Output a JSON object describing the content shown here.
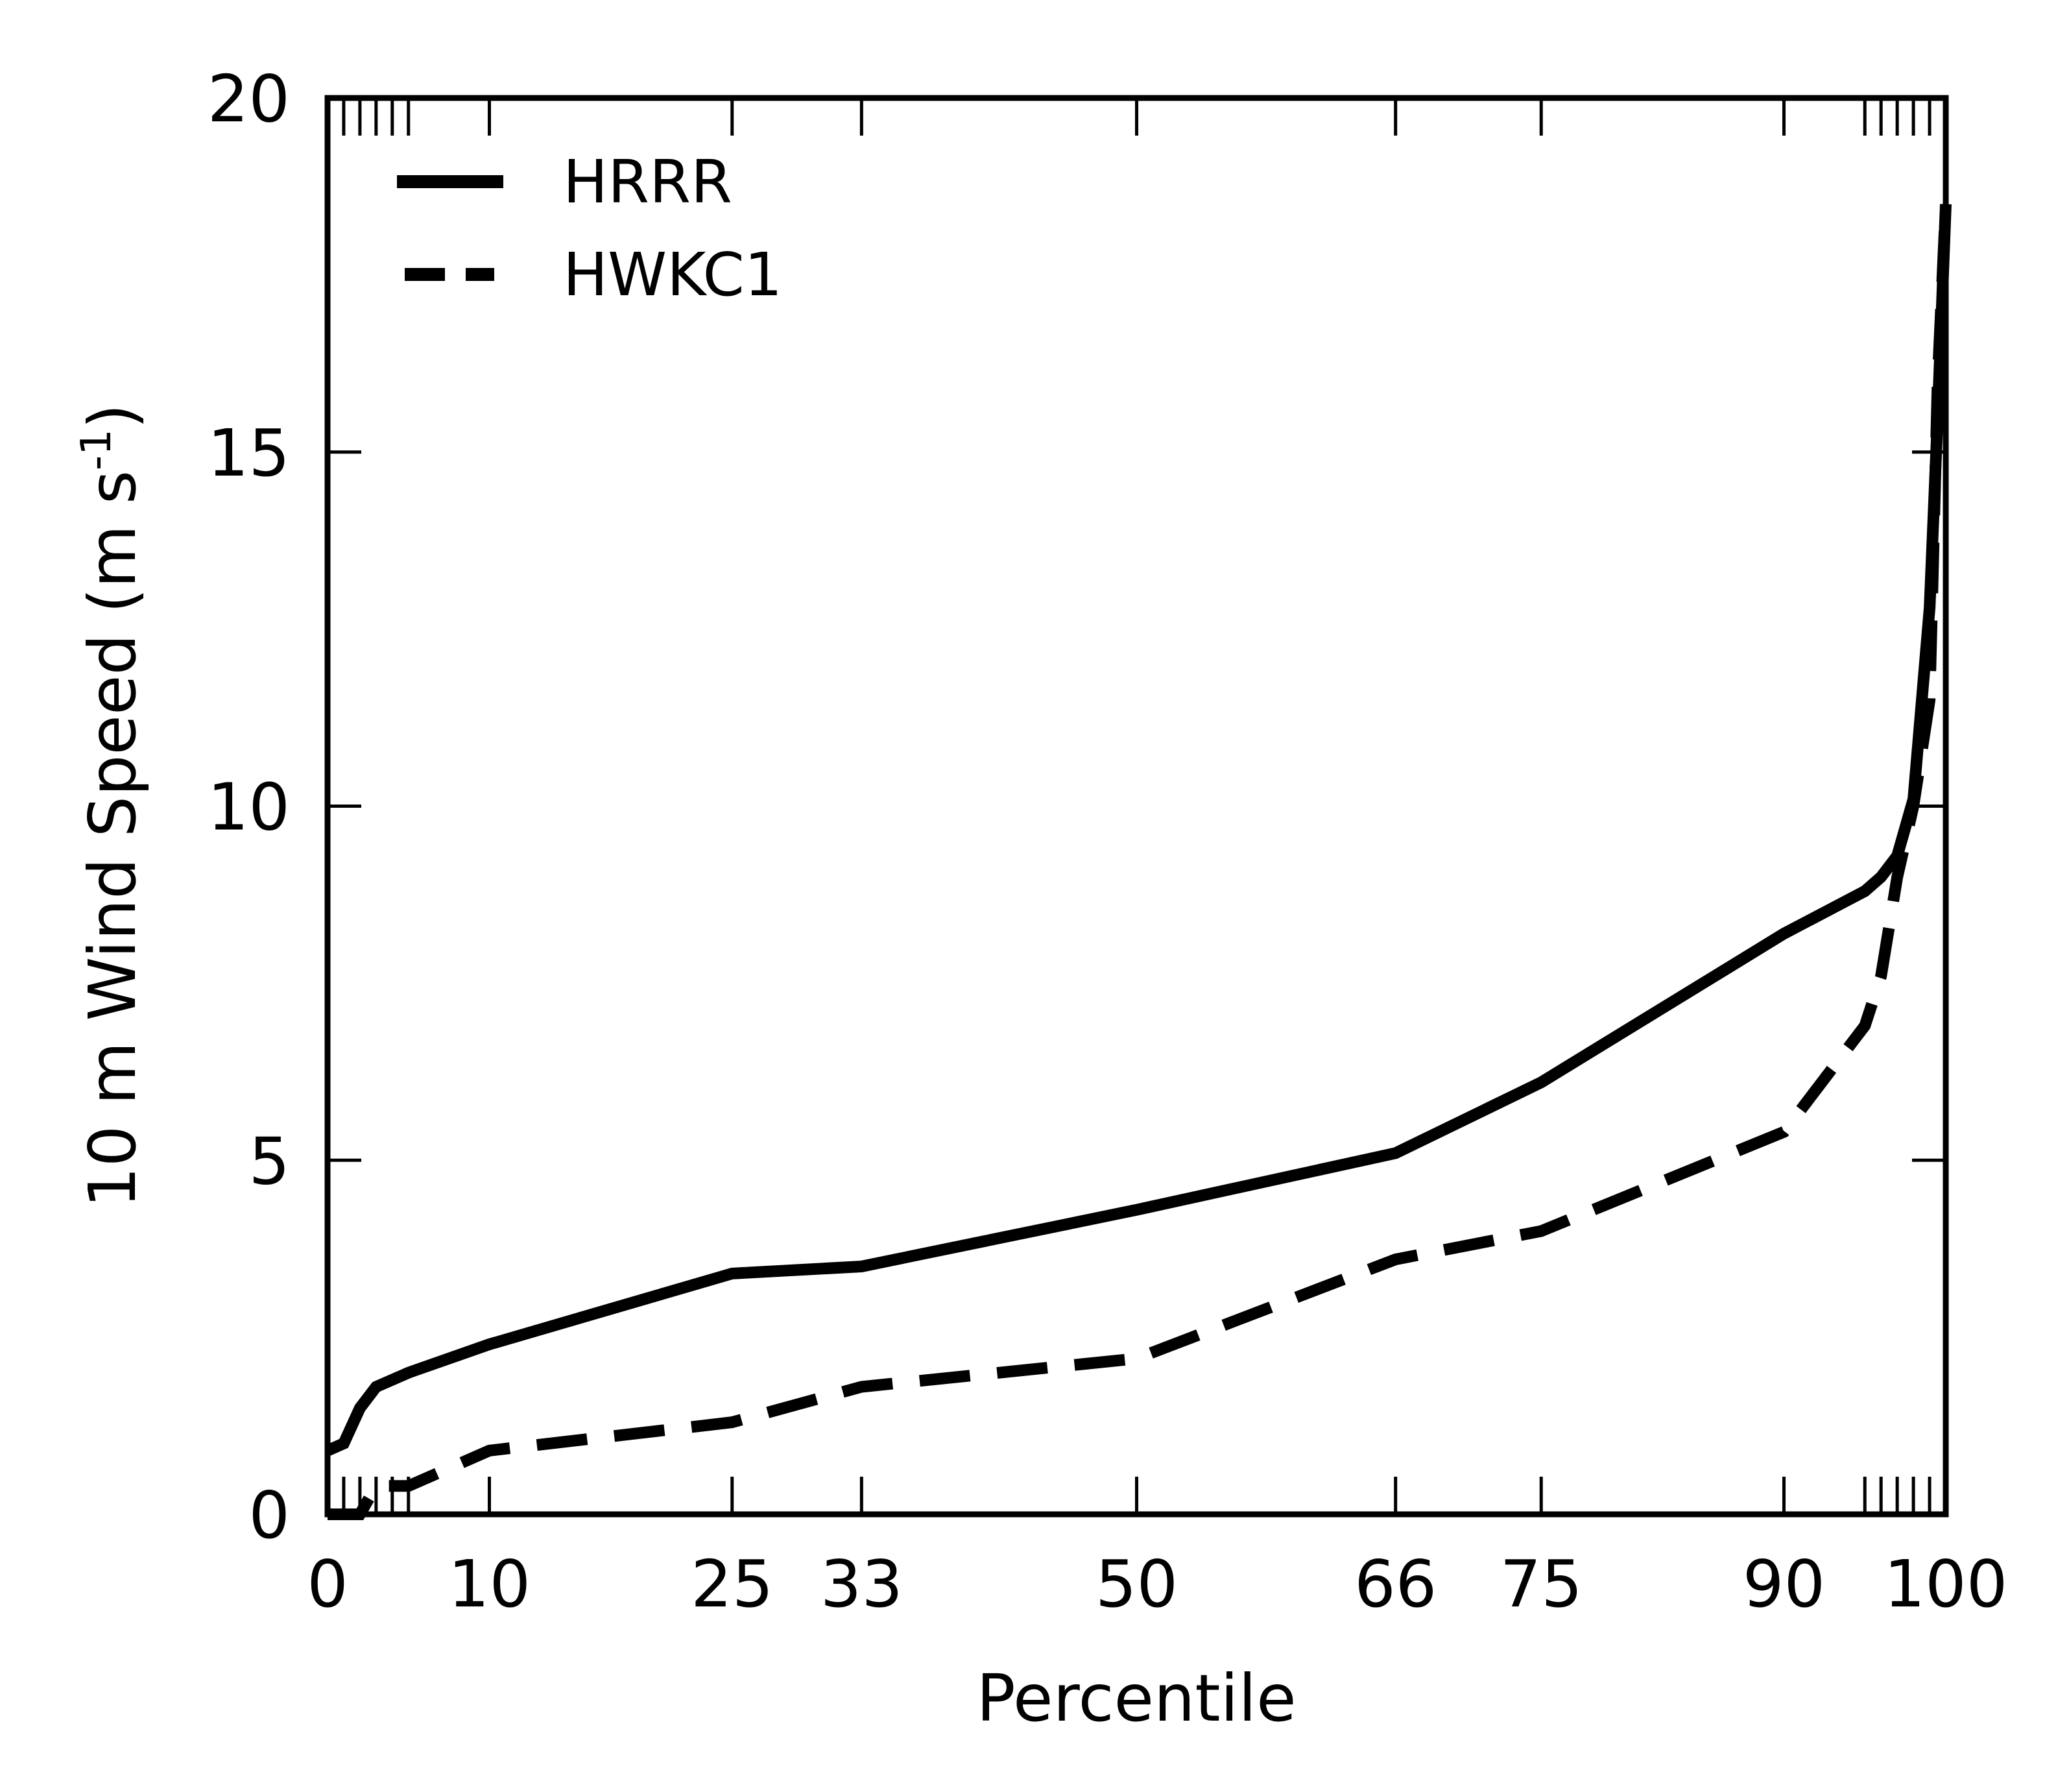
{
  "chart_data": {
    "type": "line",
    "title": "",
    "xlabel": "Percentile",
    "ylabel_main": "10 m Wind Speed (m s",
    "ylabel_sup": "-1",
    "ylabel_tail": ")",
    "xlim": [
      0,
      100
    ],
    "ylim": [
      0,
      20
    ],
    "grid": false,
    "legend_position": "top-left",
    "x_ticks": [
      {
        "value": 0,
        "label": "0"
      },
      {
        "value": 10,
        "label": "10"
      },
      {
        "value": 25,
        "label": "25"
      },
      {
        "value": 33,
        "label": "33"
      },
      {
        "value": 50,
        "label": "50"
      },
      {
        "value": 66,
        "label": "66"
      },
      {
        "value": 75,
        "label": "75"
      },
      {
        "value": 90,
        "label": "90"
      },
      {
        "value": 100,
        "label": "100"
      }
    ],
    "x_minor_ticks": [
      1,
      2,
      3,
      4,
      5,
      95,
      96,
      97,
      98,
      99
    ],
    "y_ticks": [
      {
        "value": 0,
        "label": "0"
      },
      {
        "value": 5,
        "label": "5"
      },
      {
        "value": 10,
        "label": "10"
      },
      {
        "value": 15,
        "label": "15"
      },
      {
        "value": 20,
        "label": "20"
      }
    ],
    "series": [
      {
        "name": "HRRR",
        "style": "solid",
        "color": "#000000",
        "points": [
          [
            0,
            0.9
          ],
          [
            1,
            1.0
          ],
          [
            2,
            1.5
          ],
          [
            3,
            1.8
          ],
          [
            5,
            2.0
          ],
          [
            10,
            2.4
          ],
          [
            25,
            3.4
          ],
          [
            33,
            3.5
          ],
          [
            50,
            4.3
          ],
          [
            66,
            5.1
          ],
          [
            75,
            6.1
          ],
          [
            90,
            8.2
          ],
          [
            95,
            8.8
          ],
          [
            96,
            9.0
          ],
          [
            97,
            9.3
          ],
          [
            98,
            10.1
          ],
          [
            99,
            12.8
          ],
          [
            99.5,
            15.5
          ],
          [
            100,
            18.5
          ]
        ]
      },
      {
        "name": "HWKC1",
        "style": "dashed",
        "color": "#000000",
        "points": [
          [
            0,
            0.0
          ],
          [
            2,
            0.0
          ],
          [
            3,
            0.4
          ],
          [
            5,
            0.4
          ],
          [
            10,
            0.9
          ],
          [
            25,
            1.3
          ],
          [
            33,
            1.8
          ],
          [
            50,
            2.2
          ],
          [
            66,
            3.6
          ],
          [
            75,
            4.0
          ],
          [
            90,
            5.4
          ],
          [
            95,
            6.9
          ],
          [
            96,
            7.6
          ],
          [
            97,
            9.0
          ],
          [
            98,
            10.0
          ],
          [
            99,
            11.5
          ],
          [
            99.5,
            16.0
          ],
          [
            100,
            18.5
          ]
        ]
      }
    ]
  }
}
